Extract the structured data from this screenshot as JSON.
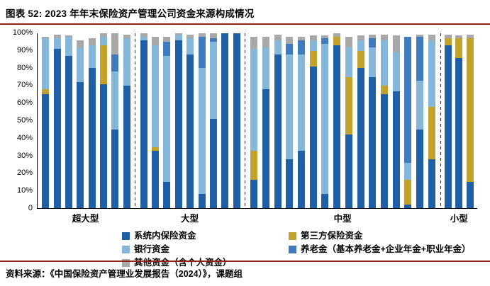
{
  "header": {
    "title": "图表 52: 2023 年年末保险资产管理公司资金来源构成情况"
  },
  "footer": {
    "source": "资料来源：《中国保险资产管理业发展报告（2024）》，课题组"
  },
  "style": {
    "rule_color": "#8E231A",
    "axis_color": "#000000",
    "separator_style": "dashed"
  },
  "chart_data": {
    "type": "bar",
    "stacked": true,
    "unit": "percent",
    "title": "2023 年年末保险资产管理公司资金来源构成情况",
    "ylabel": "",
    "xlabel": "",
    "ylim": [
      0,
      100
    ],
    "grid": false,
    "legend_position": "bottom",
    "ytick_labels": [
      "0",
      "10%",
      "20%",
      "30%",
      "40%",
      "50%",
      "60%",
      "70%",
      "80%",
      "90%",
      "100%"
    ],
    "series": [
      {
        "name": "系统内保险资金",
        "color": "#1F5FA6"
      },
      {
        "name": "第三方保险资金",
        "color": "#C3A22B"
      },
      {
        "name": "银行资金",
        "color": "#85B7DA"
      },
      {
        "name": "养老金（基本养老金+企业年金+职业年金）",
        "color": "#3E7CBF"
      },
      {
        "name": "其他资金（含个人资金）",
        "color": "#A8A8A8"
      }
    ],
    "groups": [
      {
        "label": "超大型",
        "bars": [
          [
            65,
            3,
            29,
            0,
            1
          ],
          [
            91,
            0,
            6,
            0,
            2
          ],
          [
            87,
            0,
            11,
            0,
            1
          ],
          [
            72,
            0,
            20,
            0,
            4
          ],
          [
            80,
            0,
            13,
            0,
            4
          ],
          [
            71,
            22,
            5,
            0,
            2
          ],
          [
            45,
            0,
            33,
            10,
            12
          ],
          [
            70,
            0,
            27,
            0,
            2
          ]
        ]
      },
      {
        "label": "大型",
        "bars": [
          [
            96,
            0,
            2,
            0,
            2
          ],
          [
            33,
            2,
            58,
            0,
            5
          ],
          [
            15,
            0,
            72,
            8,
            3
          ],
          [
            96,
            0,
            3,
            0,
            1
          ],
          [
            88,
            0,
            9,
            0,
            2
          ],
          [
            8,
            0,
            72,
            18,
            2
          ],
          [
            51,
            0,
            44,
            2,
            3
          ],
          [
            100,
            0,
            0,
            0,
            0
          ],
          [
            100,
            0,
            0,
            0,
            0
          ]
        ]
      },
      {
        "label": "中型",
        "bars": [
          [
            16,
            17,
            58,
            0,
            7
          ],
          [
            68,
            0,
            24,
            0,
            6
          ],
          [
            88,
            0,
            8,
            0,
            3
          ],
          [
            28,
            0,
            60,
            6,
            4
          ],
          [
            33,
            0,
            55,
            8,
            2
          ],
          [
            81,
            9,
            6,
            0,
            3
          ],
          [
            8,
            0,
            86,
            3,
            2
          ],
          [
            93,
            5,
            0,
            0,
            2
          ],
          [
            42,
            33,
            17,
            0,
            6
          ],
          [
            80,
            10,
            6,
            0,
            3
          ],
          [
            75,
            0,
            17,
            5,
            2
          ],
          [
            65,
            5,
            26,
            0,
            3
          ],
          [
            67,
            0,
            22,
            0,
            10
          ],
          [
            2,
            14,
            10,
            72,
            0
          ],
          [
            45,
            0,
            28,
            25,
            1
          ],
          [
            28,
            30,
            38,
            0,
            3
          ]
        ]
      },
      {
        "label": "小型",
        "bars": [
          [
            93,
            4,
            0,
            0,
            2
          ],
          [
            86,
            11,
            0,
            0,
            2
          ],
          [
            15,
            82,
            0,
            0,
            2
          ]
        ]
      }
    ]
  }
}
